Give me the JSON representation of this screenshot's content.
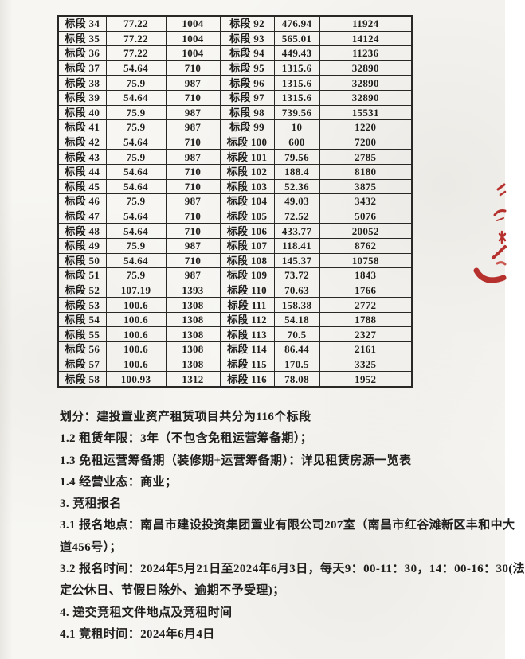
{
  "colors": {
    "paper": "#f7f6f3",
    "ink": "#201e1c",
    "stamp_red": "#b6312e"
  },
  "table": {
    "description": "two side-by-side groups of [section, value, value] columns",
    "rows": [
      [
        "标段 34",
        "77.22",
        "1004",
        "标段 92",
        "476.94",
        "11924"
      ],
      [
        "标段 35",
        "77.22",
        "1004",
        "标段 93",
        "565.01",
        "14124"
      ],
      [
        "标段 36",
        "77.22",
        "1004",
        "标段 94",
        "449.43",
        "11236"
      ],
      [
        "标段 37",
        "54.64",
        "710",
        "标段 95",
        "1315.6",
        "32890"
      ],
      [
        "标段 38",
        "75.9",
        "987",
        "标段 96",
        "1315.6",
        "32890"
      ],
      [
        "标段 39",
        "54.64",
        "710",
        "标段 97",
        "1315.6",
        "32890"
      ],
      [
        "标段 40",
        "75.9",
        "987",
        "标段 98",
        "739.56",
        "15531"
      ],
      [
        "标段 41",
        "75.9",
        "987",
        "标段 99",
        "10",
        "1220"
      ],
      [
        "标段 42",
        "54.64",
        "710",
        "标段 100",
        "600",
        "7200"
      ],
      [
        "标段 43",
        "75.9",
        "987",
        "标段 101",
        "79.56",
        "2785"
      ],
      [
        "标段 44",
        "54.64",
        "710",
        "标段 102",
        "188.4",
        "8180"
      ],
      [
        "标段 45",
        "54.64",
        "710",
        "标段 103",
        "52.36",
        "3875"
      ],
      [
        "标段 46",
        "75.9",
        "987",
        "标段 104",
        "49.03",
        "3432"
      ],
      [
        "标段 47",
        "54.64",
        "710",
        "标段 105",
        "72.52",
        "5076"
      ],
      [
        "标段 48",
        "54.64",
        "710",
        "标段 106",
        "433.77",
        "20052"
      ],
      [
        "标段 49",
        "75.9",
        "987",
        "标段 107",
        "118.41",
        "8762"
      ],
      [
        "标段 50",
        "54.64",
        "710",
        "标段 108",
        "145.37",
        "10758"
      ],
      [
        "标段 51",
        "75.9",
        "987",
        "标段 109",
        "73.72",
        "1843"
      ],
      [
        "标段 52",
        "107.19",
        "1393",
        "标段 110",
        "70.63",
        "1766"
      ],
      [
        "标段 53",
        "100.6",
        "1308",
        "标段 111",
        "158.38",
        "2772"
      ],
      [
        "标段 54",
        "100.6",
        "1308",
        "标段 112",
        "54.18",
        "1788"
      ],
      [
        "标段 55",
        "100.6",
        "1308",
        "标段 113",
        "70.5",
        "2327"
      ],
      [
        "标段 56",
        "100.6",
        "1308",
        "标段 114",
        "86.44",
        "2161"
      ],
      [
        "标段 57",
        "100.6",
        "1308",
        "标段 115",
        "170.5",
        "3325"
      ],
      [
        "标段 58",
        "100.93",
        "1312",
        "标段 116",
        "78.08",
        "1952"
      ]
    ]
  },
  "paragraphs": [
    {
      "text": "划分：建投置业资产租赁项目共分为116个标段"
    },
    {
      "text": "1.2 租赁年限：3年（不包含免租运营筹备期）；"
    },
    {
      "text": "1.3 免租运营筹备期（装修期+运营筹备期）：详见租赁房源一览表"
    },
    {
      "text": "1.4 经营业态：商业；"
    },
    {
      "text": "3. 竞租报名"
    },
    {
      "text": "3.1 报名地点：南昌市建设投资集团置业有限公司207室（南昌市红谷滩新区丰和中大"
    },
    {
      "text": "道456号）；"
    },
    {
      "text": "3.2 报名时间：2024年5月21日至2024年6月3日，每天9：00-11：30，14：00-16：30(法"
    },
    {
      "text": "定公休日、节假日除外、逾期不予受理)；"
    },
    {
      "text": "4. 递交竞租文件地点及竞租时间"
    },
    {
      "text": "4.1 竞租时间：2024年6月4日"
    }
  ],
  "stamp": {
    "name": "red-seal-fragment",
    "color": "#b6312e"
  }
}
